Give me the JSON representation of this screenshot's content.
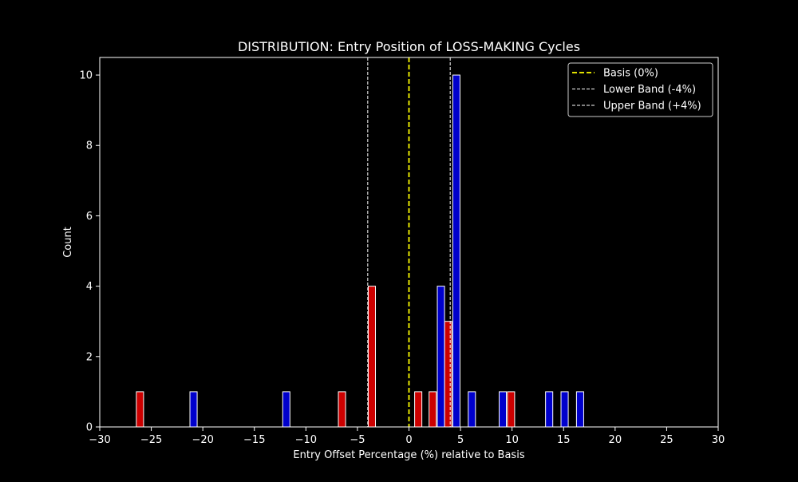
{
  "chart_data": {
    "type": "bar",
    "title": "DISTRIBUTION: Entry Position of LOSS-MAKING Cycles",
    "xlabel": "Entry Offset Percentage (%) relative to Basis",
    "ylabel": "Count",
    "xlim": [
      -30,
      30
    ],
    "ylim": [
      0,
      10.5
    ],
    "xticks": [
      -30,
      -25,
      -20,
      -15,
      -10,
      -5,
      0,
      5,
      10,
      15,
      20,
      25,
      30
    ],
    "xtick_labels": [
      "−30",
      "−25",
      "−20",
      "−15",
      "−10",
      "−5",
      "0",
      "5",
      "10",
      "15",
      "20",
      "25",
      "30"
    ],
    "yticks": [
      0,
      2,
      4,
      6,
      8,
      10
    ],
    "ytick_labels": [
      "0",
      "2",
      "4",
      "6",
      "8",
      "10"
    ],
    "grid": false,
    "legend_position": "top-right",
    "bar_width": 0.7,
    "series": [
      {
        "color": "#cc0000",
        "bars": [
          {
            "x": -26.1,
            "count": 1
          },
          {
            "x": -6.5,
            "count": 1
          },
          {
            "x": -3.6,
            "count": 4
          },
          {
            "x": 0.9,
            "count": 1
          },
          {
            "x": 2.3,
            "count": 1
          },
          {
            "x": 3.8,
            "count": 3
          },
          {
            "x": 9.9,
            "count": 1
          }
        ]
      },
      {
        "color": "#0000cc",
        "bars": [
          {
            "x": -20.9,
            "count": 1
          },
          {
            "x": -11.9,
            "count": 1
          },
          {
            "x": 3.1,
            "count": 4
          },
          {
            "x": 4.6,
            "count": 10
          },
          {
            "x": 6.1,
            "count": 1
          },
          {
            "x": 9.1,
            "count": 1
          },
          {
            "x": 13.6,
            "count": 1
          },
          {
            "x": 15.1,
            "count": 1
          },
          {
            "x": 16.6,
            "count": 1
          }
        ]
      }
    ],
    "reference_lines": [
      {
        "name": "Basis (0%)",
        "x": 0,
        "color": "#ffff00",
        "style": "dashed"
      },
      {
        "name": "Lower Band (-4%)",
        "x": -4,
        "color": "#ffffff",
        "style": "dashed"
      },
      {
        "name": "Upper Band (+4%)",
        "x": 4,
        "color": "#ffffff",
        "style": "dashed"
      }
    ]
  }
}
